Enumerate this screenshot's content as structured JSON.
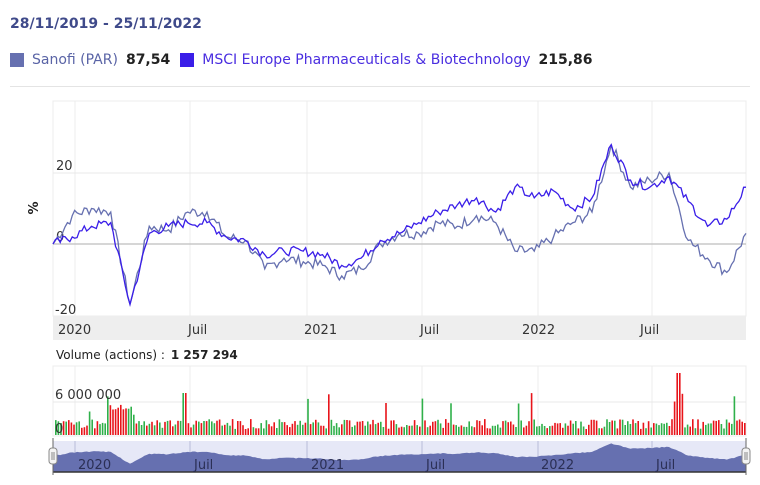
{
  "header": {
    "period": "28/11/2019 - 25/11/2022"
  },
  "legend": [
    {
      "name": "Sanofi (PAR)",
      "value": "87,54",
      "color": "#6670b0"
    },
    {
      "name": "MSCI Europe Pharmaceuticals & Biotechnology",
      "value": "215,86",
      "color": "#3a1ee8"
    }
  ],
  "volume": {
    "label": "Volume (actions) :",
    "value": "1 257 294",
    "y_ticks": [
      "6 000 000",
      "0"
    ],
    "up_color": "#2fb04a",
    "down_color": "#e8141a"
  },
  "navigator": {
    "labels": [
      "2020",
      "Juil",
      "2021",
      "Juil",
      "2022",
      "Juil"
    ],
    "fill_color": "#6670b0",
    "bg_color": "#e6e8f7"
  },
  "chart_data": {
    "type": "line",
    "title": "28/11/2019 - 25/11/2022",
    "xlabel": "",
    "ylabel": "%",
    "ylim": [
      -20,
      40
    ],
    "y_ticks": [
      -20,
      0,
      20
    ],
    "x_tick_labels": [
      "2020",
      "Juil",
      "2021",
      "Juil",
      "2022",
      "Juil"
    ],
    "grid": true,
    "legend_position": "top",
    "x": [
      "2019-11",
      "2019-12",
      "2020-01",
      "2020-02",
      "2020-03",
      "2020-04",
      "2020-05",
      "2020-06",
      "2020-07",
      "2020-08",
      "2020-09",
      "2020-10",
      "2020-11",
      "2020-12",
      "2021-01",
      "2021-02",
      "2021-03",
      "2021-04",
      "2021-05",
      "2021-06",
      "2021-07",
      "2021-08",
      "2021-09",
      "2021-10",
      "2021-11",
      "2021-12",
      "2022-01",
      "2022-02",
      "2022-03",
      "2022-04",
      "2022-05",
      "2022-06",
      "2022-07",
      "2022-08",
      "2022-09",
      "2022-10",
      "2022-11"
    ],
    "series": [
      {
        "name": "Sanofi (PAR)",
        "color": "#6670b0",
        "values": [
          0,
          8,
          10,
          9,
          -17,
          5,
          4,
          9,
          9,
          2,
          1,
          -7,
          -4,
          -5,
          -6,
          -9,
          -7,
          0,
          3,
          3,
          6,
          5,
          8,
          6,
          -2,
          -2,
          2,
          6,
          9,
          28,
          16,
          18,
          20,
          1,
          -4,
          -8,
          3
        ]
      },
      {
        "name": "MSCI Europe Pharmaceuticals & Biotechnology",
        "color": "#3a1ee8",
        "values": [
          0,
          2,
          5,
          6,
          -17,
          3,
          5,
          6,
          6,
          2,
          1,
          -3,
          -2,
          -2,
          -3,
          -6,
          -4,
          1,
          3,
          6,
          9,
          11,
          13,
          9,
          16,
          13,
          15,
          10,
          13,
          28,
          18,
          16,
          19,
          12,
          5,
          7,
          16
        ]
      }
    ]
  }
}
